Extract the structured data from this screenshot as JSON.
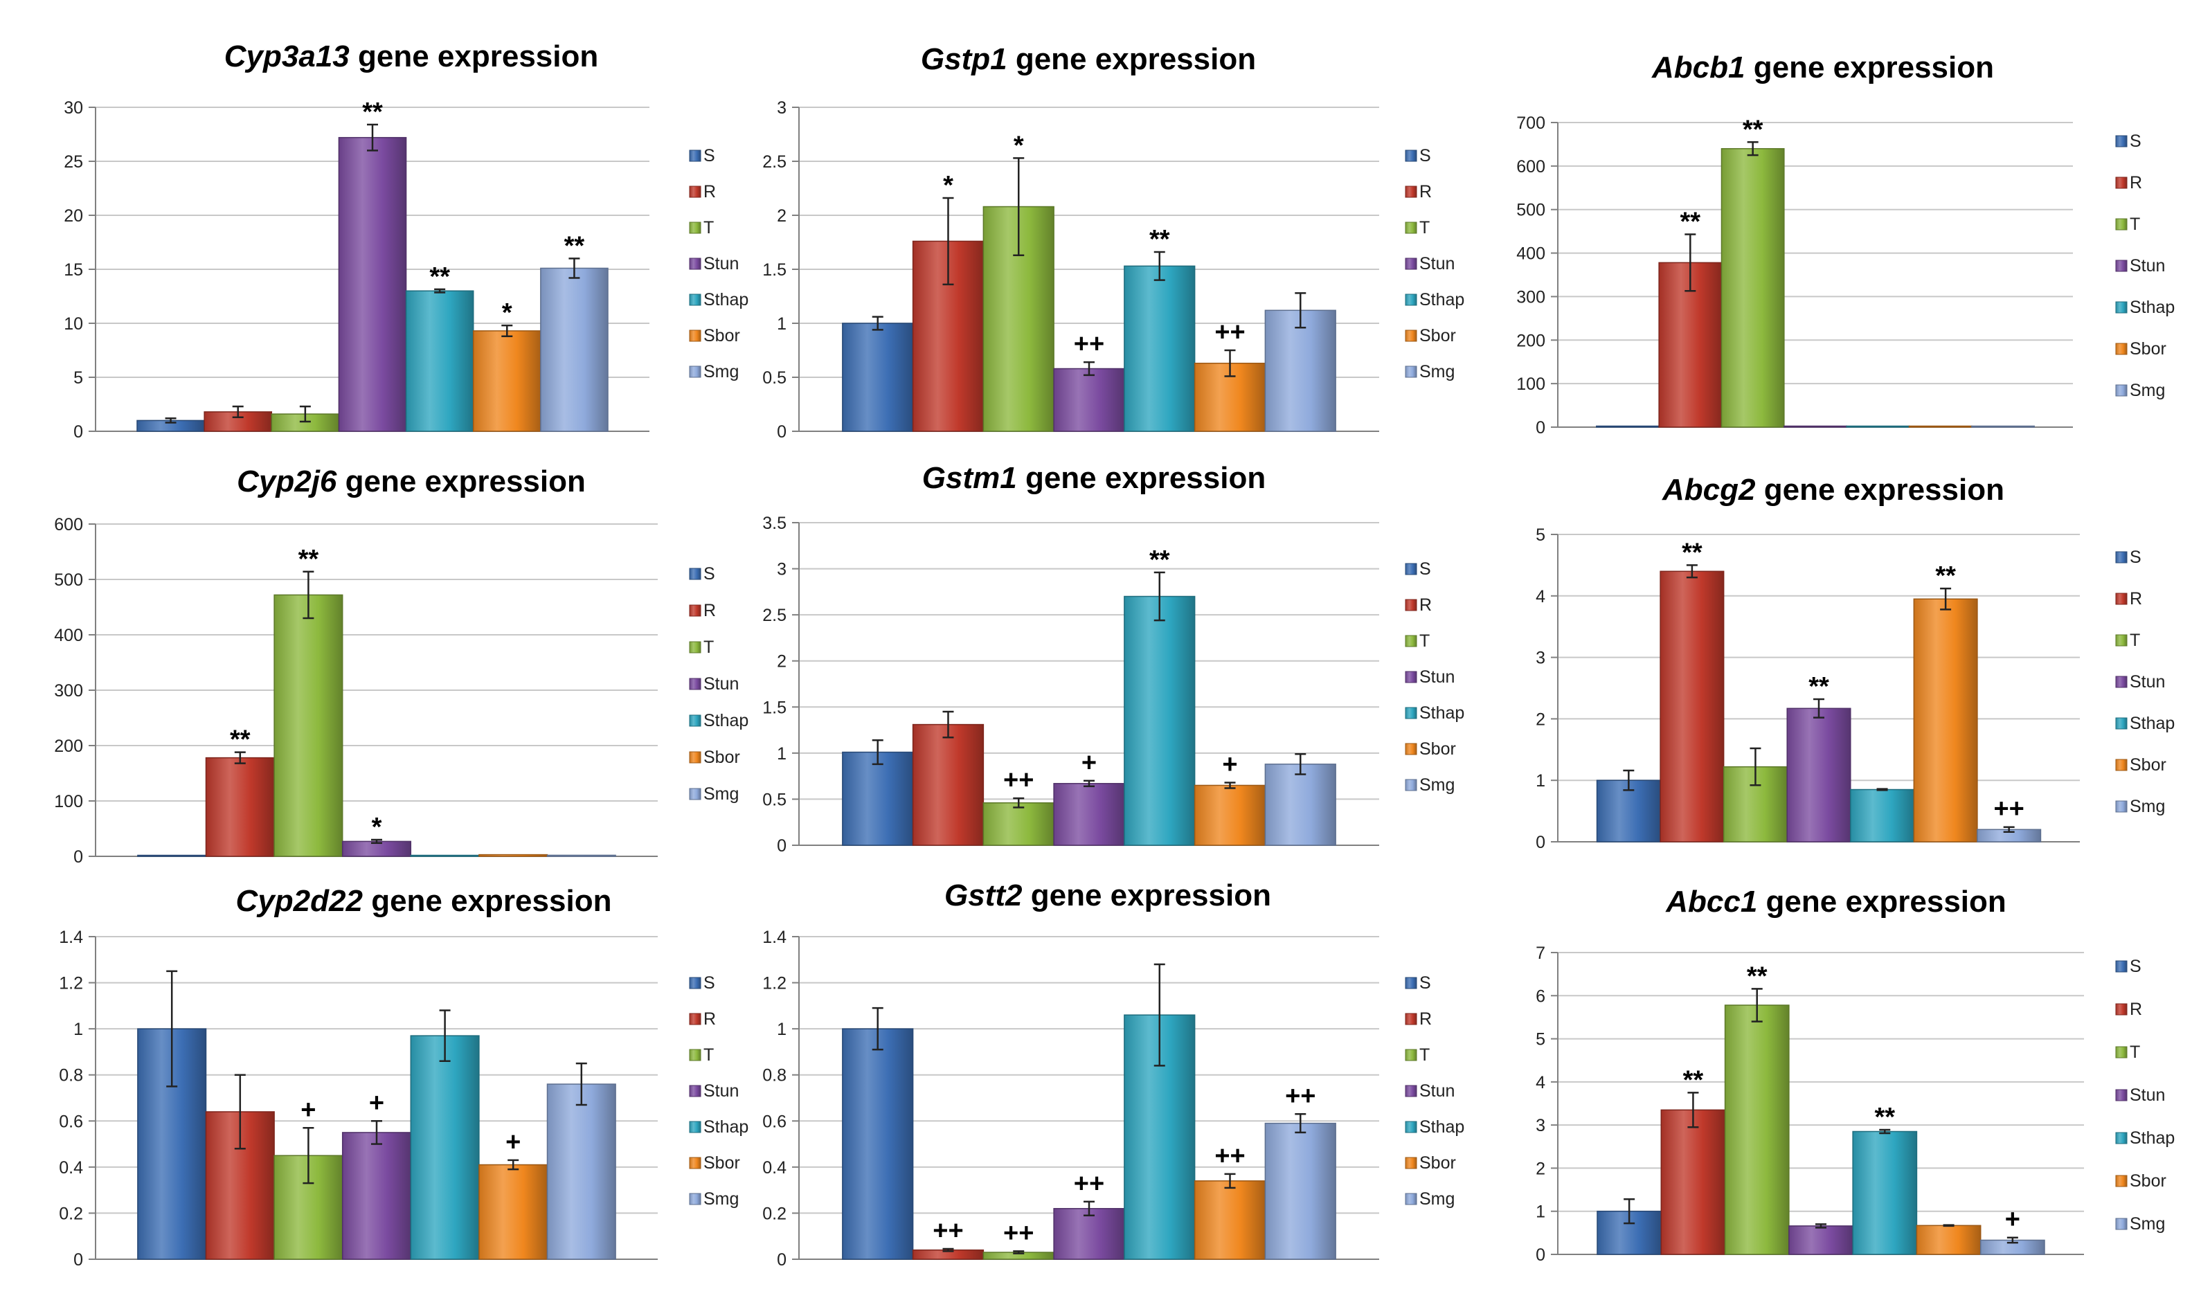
{
  "colors": {
    "S": "#3C6EB4",
    "R": "#C0392B",
    "T": "#8DB93E",
    "Stun": "#7B4BA0",
    "Sthap": "#2EA6C0",
    "Sbor": "#F0871E",
    "Smg": "#8FAADC"
  },
  "chart_data": [
    {
      "type": "bar",
      "gene": "Cyp3a13",
      "title_suffix": " gene expression",
      "categories": [
        "S",
        "R",
        "T",
        "Stun",
        "Sthap",
        "Sbor",
        "Smg"
      ],
      "values": [
        1,
        1.8,
        1.6,
        27.2,
        13,
        9.3,
        15.1
      ],
      "errors": [
        0.2,
        0.5,
        0.7,
        1.2,
        0.15,
        0.5,
        0.9
      ],
      "significance": [
        "",
        "",
        "",
        "**",
        "**",
        "*",
        "**"
      ],
      "ylim": [
        0,
        30
      ],
      "yticks": [
        0,
        5,
        10,
        15,
        20,
        25,
        30
      ],
      "ytick_labels": [
        "0",
        "5",
        "10",
        "15",
        "20",
        "25",
        "30"
      ]
    },
    {
      "type": "bar",
      "gene": "Gstp1",
      "title_suffix": " gene expression",
      "categories": [
        "S",
        "R",
        "T",
        "Stun",
        "Sthap",
        "Sbor",
        "Smg"
      ],
      "values": [
        1,
        1.76,
        2.08,
        0.58,
        1.53,
        0.63,
        1.12
      ],
      "errors": [
        0.06,
        0.4,
        0.45,
        0.06,
        0.13,
        0.12,
        0.16
      ],
      "significance": [
        "",
        "*",
        "*",
        "++",
        "**",
        "++",
        ""
      ],
      "ylim": [
        0,
        3
      ],
      "yticks": [
        0,
        0.5,
        1,
        1.5,
        2,
        2.5,
        3
      ],
      "ytick_labels": [
        "0",
        "0.5",
        "1",
        "1.5",
        "2",
        "2.5",
        "3"
      ]
    },
    {
      "type": "bar",
      "gene": "Abcb1",
      "title_suffix": " gene expression",
      "categories": [
        "S",
        "R",
        "T",
        "Stun",
        "Sthap",
        "Sbor",
        "Smg"
      ],
      "values": [
        1,
        378,
        640,
        1,
        1,
        1,
        1
      ],
      "errors": [
        0,
        65,
        15,
        0,
        0,
        0,
        0
      ],
      "significance": [
        "",
        "**",
        "**",
        "",
        "",
        "",
        ""
      ],
      "ylim": [
        0,
        700
      ],
      "yticks": [
        0,
        100,
        200,
        300,
        400,
        500,
        600,
        700
      ],
      "ytick_labels": [
        "0",
        "100",
        "200",
        "300",
        "400",
        "500",
        "600",
        "700"
      ]
    },
    {
      "type": "bar",
      "gene": "Cyp2j6",
      "title_suffix": " gene expression",
      "categories": [
        "S",
        "R",
        "T",
        "Stun",
        "Sthap",
        "Sbor",
        "Smg"
      ],
      "values": [
        1,
        178,
        472,
        27,
        1,
        3,
        2
      ],
      "errors": [
        0,
        10,
        42,
        3,
        0,
        0,
        0
      ],
      "significance": [
        "",
        "**",
        "**",
        "*",
        "",
        "",
        ""
      ],
      "ylim": [
        0,
        600
      ],
      "yticks": [
        0,
        100,
        200,
        300,
        400,
        500,
        600
      ],
      "ytick_labels": [
        "0",
        "100",
        "200",
        "300",
        "400",
        "500",
        "600"
      ]
    },
    {
      "type": "bar",
      "gene": "Gstm1",
      "title_suffix": " gene expression",
      "categories": [
        "S",
        "R",
        "T",
        "Stun",
        "Sthap",
        "Sbor",
        "Smg"
      ],
      "values": [
        1.01,
        1.31,
        0.46,
        0.67,
        2.7,
        0.65,
        0.88
      ],
      "errors": [
        0.13,
        0.14,
        0.05,
        0.03,
        0.26,
        0.03,
        0.11
      ],
      "significance": [
        "",
        "",
        "++",
        "+",
        "**",
        "+",
        ""
      ],
      "ylim": [
        0,
        3.5
      ],
      "yticks": [
        0,
        0.5,
        1,
        1.5,
        2,
        2.5,
        3,
        3.5
      ],
      "ytick_labels": [
        "0",
        "0.5",
        "1",
        "1.5",
        "2",
        "2.5",
        "3",
        "3.5"
      ]
    },
    {
      "type": "bar",
      "gene": "Abcg2",
      "title_suffix": " gene expression",
      "categories": [
        "S",
        "R",
        "T",
        "Stun",
        "Sthap",
        "Sbor",
        "Smg"
      ],
      "values": [
        1,
        4.4,
        1.22,
        2.17,
        0.85,
        3.95,
        0.2
      ],
      "errors": [
        0.16,
        0.1,
        0.3,
        0.15,
        0.01,
        0.17,
        0.04
      ],
      "significance": [
        "",
        "**",
        "",
        "**",
        "",
        "**",
        "++"
      ],
      "ylim": [
        0,
        5
      ],
      "yticks": [
        0,
        1,
        2,
        3,
        4,
        5
      ],
      "ytick_labels": [
        "0",
        "1",
        "2",
        "3",
        "4",
        "5"
      ]
    },
    {
      "type": "bar",
      "gene": "Cyp2d22",
      "title_suffix": " gene expression",
      "categories": [
        "S",
        "R",
        "T",
        "Stun",
        "Sthap",
        "Sbor",
        "Smg"
      ],
      "values": [
        1,
        0.64,
        0.45,
        0.55,
        0.97,
        0.41,
        0.76
      ],
      "errors": [
        0.25,
        0.16,
        0.12,
        0.05,
        0.11,
        0.02,
        0.09
      ],
      "significance": [
        "",
        "",
        "+",
        "+",
        "",
        "+",
        ""
      ],
      "ylim": [
        0,
        1.4
      ],
      "yticks": [
        0,
        0.2,
        0.4,
        0.6,
        0.8,
        1,
        1.2,
        1.4
      ],
      "ytick_labels": [
        "0",
        "0.2",
        "0.4",
        "0.6",
        "0.8",
        "1",
        "1.2",
        "1.4"
      ]
    },
    {
      "type": "bar",
      "gene": "Gstt2",
      "title_suffix": " gene expression",
      "categories": [
        "S",
        "R",
        "T",
        "Stun",
        "Sthap",
        "Sbor",
        "Smg"
      ],
      "values": [
        1,
        0.04,
        0.03,
        0.22,
        1.06,
        0.34,
        0.59
      ],
      "errors": [
        0.09,
        0.005,
        0.005,
        0.03,
        0.22,
        0.03,
        0.04
      ],
      "significance": [
        "",
        "++",
        "++",
        "++",
        "",
        "++",
        "++"
      ],
      "ylim": [
        0,
        1.4
      ],
      "yticks": [
        0,
        0.2,
        0.4,
        0.6,
        0.8,
        1,
        1.2,
        1.4
      ],
      "ytick_labels": [
        "0",
        "0.2",
        "0.4",
        "0.6",
        "0.8",
        "1",
        "1.2",
        "1.4"
      ]
    },
    {
      "type": "bar",
      "gene": "Abcc1",
      "title_suffix": " gene expression",
      "categories": [
        "S",
        "R",
        "T",
        "Stun",
        "Sthap",
        "Sbor",
        "Smg"
      ],
      "values": [
        1,
        3.35,
        5.78,
        0.66,
        2.85,
        0.67,
        0.33
      ],
      "errors": [
        0.28,
        0.4,
        0.38,
        0.04,
        0.04,
        0.01,
        0.06
      ],
      "significance": [
        "",
        "**",
        "**",
        "",
        "**",
        "",
        "+"
      ],
      "ylim": [
        0,
        7
      ],
      "yticks": [
        0,
        1,
        2,
        3,
        4,
        5,
        6,
        7
      ],
      "ytick_labels": [
        "0",
        "1",
        "2",
        "3",
        "4",
        "5",
        "6",
        "7"
      ]
    }
  ]
}
